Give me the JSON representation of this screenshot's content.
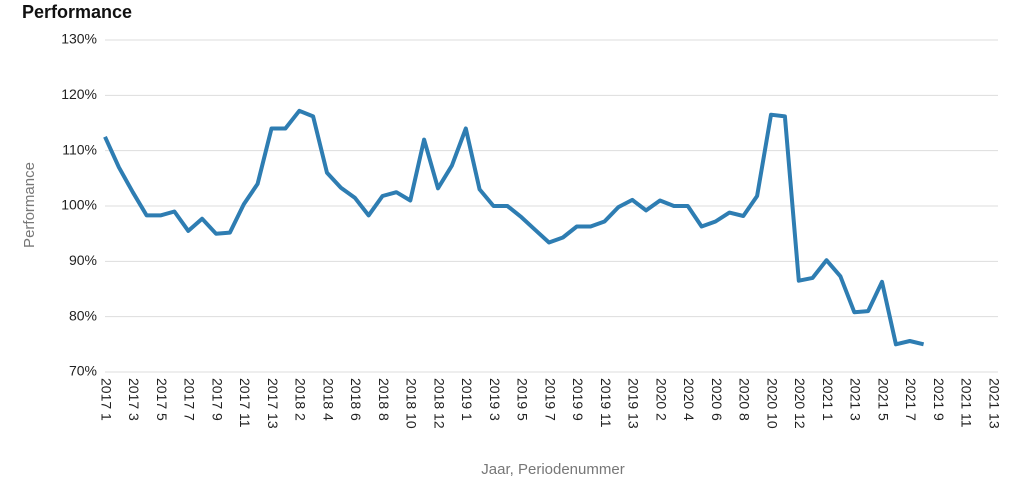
{
  "chart_data": {
    "type": "line",
    "title": "Performance",
    "xlabel": "Jaar, Periodenummer",
    "ylabel": "Performance",
    "categories": [
      "2017 1",
      null,
      "2017 3",
      null,
      "2017 5",
      null,
      "2017 7",
      null,
      "2017 9",
      null,
      "2017 11",
      null,
      "2017 13",
      null,
      "2018 2",
      null,
      "2018 4",
      null,
      "2018 6",
      null,
      "2018 8",
      null,
      "2018 10",
      null,
      "2018 12",
      null,
      "2019 1",
      null,
      "2019 3",
      null,
      "2019 5",
      null,
      "2019 7",
      null,
      "2019 9",
      null,
      "2019 11",
      null,
      "2019 13",
      null,
      "2020 2",
      null,
      "2020 4",
      null,
      "2020 6",
      null,
      "2020 8",
      null,
      "2020 10",
      null,
      "2020 12",
      null,
      "2021 1",
      null,
      "2021 3",
      null,
      "2021 5",
      null,
      "2021 7",
      null,
      "2021 9",
      null,
      "2021 11",
      null,
      "2021 13"
    ],
    "series": [
      {
        "name": "Performance",
        "color": "#2e7db2",
        "values": [
          112.5,
          107,
          102.5,
          98.3,
          98.3,
          99,
          95.5,
          97.7,
          95,
          95.2,
          100.3,
          104,
          114,
          114,
          117.2,
          116.2,
          106,
          103.3,
          101.5,
          98.3,
          101.8,
          102.5,
          101,
          112,
          103.2,
          107.3,
          114,
          103,
          100,
          100,
          98,
          95.7,
          93.4,
          94.3,
          96.3,
          96.3,
          97.2,
          99.8,
          101.1,
          99.2,
          101,
          100,
          100,
          96.3,
          97.2,
          98.8,
          98.2,
          101.8,
          116.5,
          116.2,
          86.5,
          87,
          90.2,
          87.3,
          80.8,
          81,
          86.3,
          75,
          75.6,
          75,
          null,
          null,
          null,
          null,
          null
        ]
      }
    ],
    "ylim": [
      70,
      130
    ],
    "yticks": [
      {
        "value": 70,
        "label": "70%"
      },
      {
        "value": 80,
        "label": "80%"
      },
      {
        "value": 90,
        "label": "90%"
      },
      {
        "value": 100,
        "label": "100%"
      },
      {
        "value": 110,
        "label": "110%"
      },
      {
        "value": 120,
        "label": "120%"
      },
      {
        "value": 130,
        "label": "130%"
      }
    ],
    "grid": true
  }
}
